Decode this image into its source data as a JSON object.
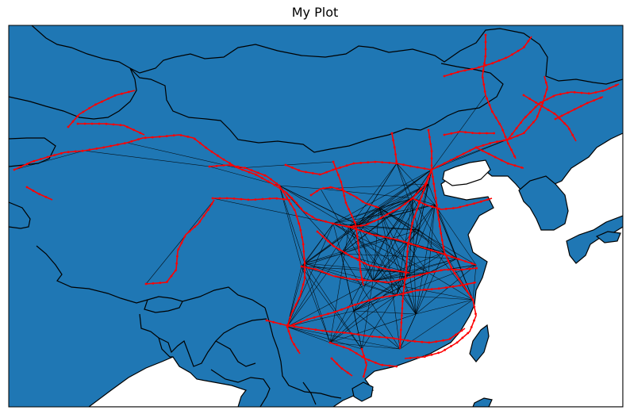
{
  "title": "My Plot",
  "colors": {
    "land": "#1f77b4",
    "sea": "#ffffff",
    "borders": "#000000",
    "network_lines": "#000000",
    "stations": "#ff0000"
  }
}
